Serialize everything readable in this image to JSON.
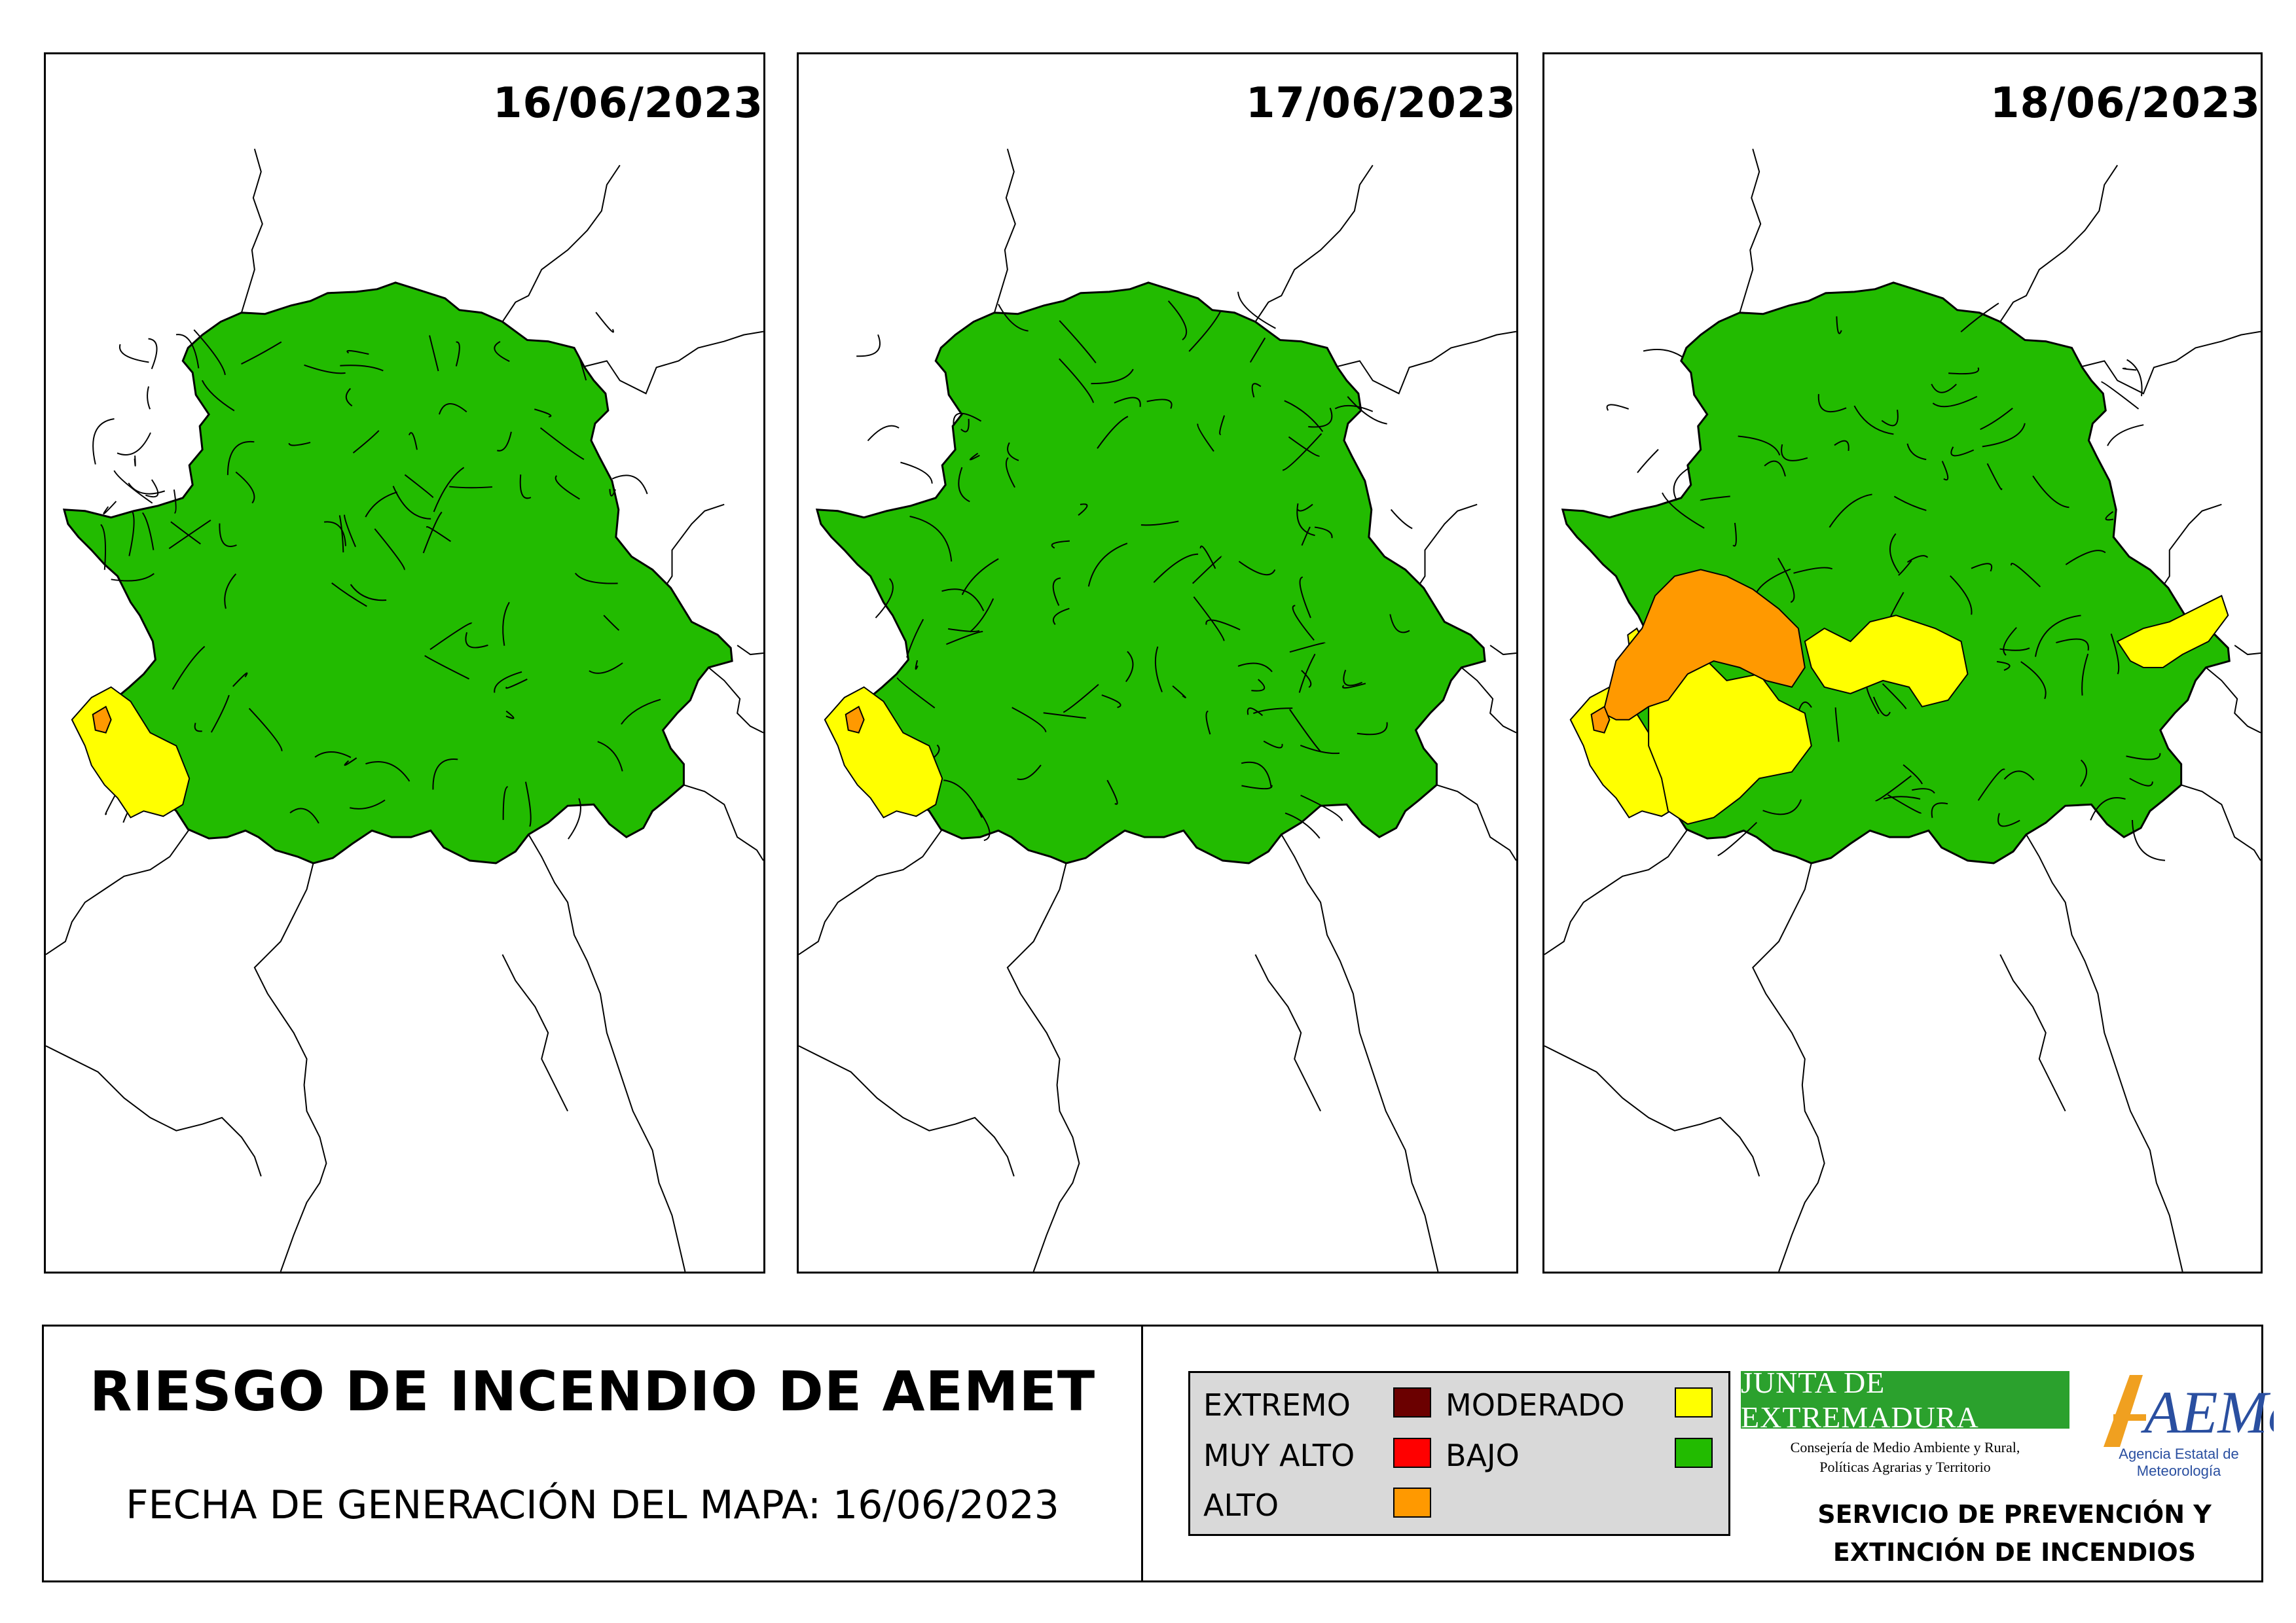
{
  "panels": [
    {
      "date": "16/06/2023",
      "moderado_zones": [
        "southwest-border"
      ],
      "alto_zones": [
        "southwest-spot"
      ]
    },
    {
      "date": "17/06/2023",
      "moderado_zones": [
        "southwest-border"
      ],
      "alto_zones": [
        "southwest-spot"
      ]
    },
    {
      "date": "18/06/2023",
      "moderado_zones": [
        "southwest-border",
        "central-west",
        "central",
        "east-spur",
        "west-spot"
      ],
      "alto_zones": [
        "central-west-large",
        "southwest-spot"
      ]
    }
  ],
  "title": "RIESGO DE INCENDIO DE AEMET",
  "generation": {
    "label": "FECHA DE GENERACIÓN DEL MAPA:",
    "date": "16/06/2023"
  },
  "legend": {
    "extremo": "EXTREMO",
    "muy_alto": "MUY ALTO",
    "alto": "ALTO",
    "moderado": "MODERADO",
    "bajo": "BAJO"
  },
  "colors": {
    "extremo": "#6b0000",
    "muy_alto": "#ff0000",
    "alto": "#ff9900",
    "moderado": "#ffff00",
    "bajo": "#22bb00"
  },
  "logos": {
    "junta": "JUNTA DE EXTREMADURA",
    "junta_sub1": "Consejería de Medio Ambiente y Rural,",
    "junta_sub2": "Políticas Agrarias y Territorio",
    "aemet": "AEMet",
    "aemet_sub": "Agencia Estatal de Meteorología"
  },
  "service": {
    "line1": "SERVICIO DE PREVENCIÓN Y",
    "line2": "EXTINCIÓN DE INCENDIOS"
  }
}
